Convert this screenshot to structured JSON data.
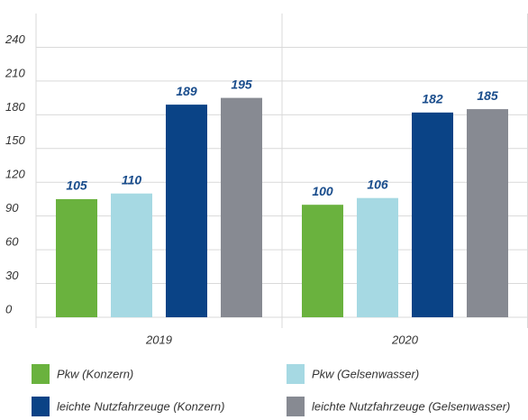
{
  "chart_data": {
    "type": "bar",
    "categories": [
      "2019",
      "2020"
    ],
    "series": [
      {
        "name": "Pkw (Konzern)",
        "color": "#6ab23e",
        "values": [
          105,
          100
        ]
      },
      {
        "name": "Pkw (Gelsenwasser)",
        "color": "#a6d9e3",
        "values": [
          110,
          106
        ]
      },
      {
        "name": "leichte Nutzfahrzeuge (Konzern)",
        "color": "#0a4386",
        "values": [
          189,
          182
        ]
      },
      {
        "name": "leichte Nutzfahrzeuge (Gelsenwasser)",
        "color": "#878a92",
        "values": [
          195,
          185
        ]
      }
    ],
    "ylim": [
      0,
      270
    ],
    "yticks": [
      0,
      30,
      60,
      90,
      120,
      150,
      180,
      210,
      240
    ],
    "grid": true
  }
}
